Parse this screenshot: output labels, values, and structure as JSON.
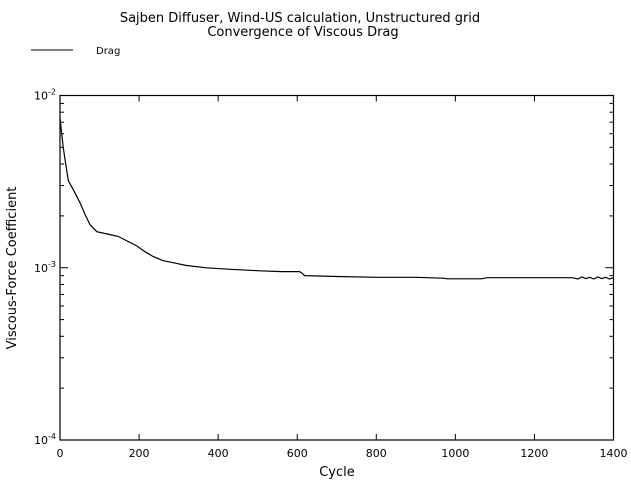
{
  "chart_data": {
    "type": "line",
    "title": "Sajben Diffuser, Wind-US calculation, Unstructured grid",
    "subtitle": "Convergence of Viscous Drag",
    "xlabel": "Cycle",
    "ylabel": "Viscous-Force Coefficient",
    "xlim": [
      0,
      1400
    ],
    "ylim": [
      0.0001,
      0.01
    ],
    "yscale": "log",
    "grid": false,
    "legend_position": "top-left",
    "x_ticks": [
      "0",
      "200",
      "400",
      "600",
      "800",
      "1000",
      "1200",
      "1400"
    ],
    "y_ticks": [
      {
        "base": "10",
        "exp": "-4"
      },
      {
        "base": "10",
        "exp": "-3"
      },
      {
        "base": "10",
        "exp": "-2"
      }
    ],
    "series": [
      {
        "name": "Drag",
        "color": "#000000",
        "x": [
          0,
          8,
          21,
          35,
          50,
          65,
          76,
          93,
          120,
          147,
          170,
          194,
          215,
          236,
          260,
          286,
          320,
          370,
          430,
          505,
          560,
          606,
          612,
          619,
          700,
          800,
          900,
          969,
          980,
          1066,
          1080,
          1200,
          1296,
          1310,
          1320,
          1330,
          1340,
          1350,
          1360,
          1370,
          1380,
          1390,
          1400
        ],
        "y": [
          0.0074,
          0.005,
          0.0032,
          0.0028,
          0.0024,
          0.002,
          0.00178,
          0.00162,
          0.00157,
          0.00152,
          0.00143,
          0.00134,
          0.00124,
          0.00116,
          0.0011,
          0.00107,
          0.00103,
          0.001,
          0.00098,
          0.00096,
          0.00095,
          0.00095,
          0.00093,
          0.0009,
          0.00089,
          0.00088,
          0.00088,
          0.00087,
          0.000863,
          0.000863,
          0.000875,
          0.000875,
          0.000875,
          0.00086,
          0.000885,
          0.000865,
          0.00088,
          0.00086,
          0.000885,
          0.000865,
          0.00088,
          0.00086,
          0.000875
        ]
      }
    ]
  }
}
